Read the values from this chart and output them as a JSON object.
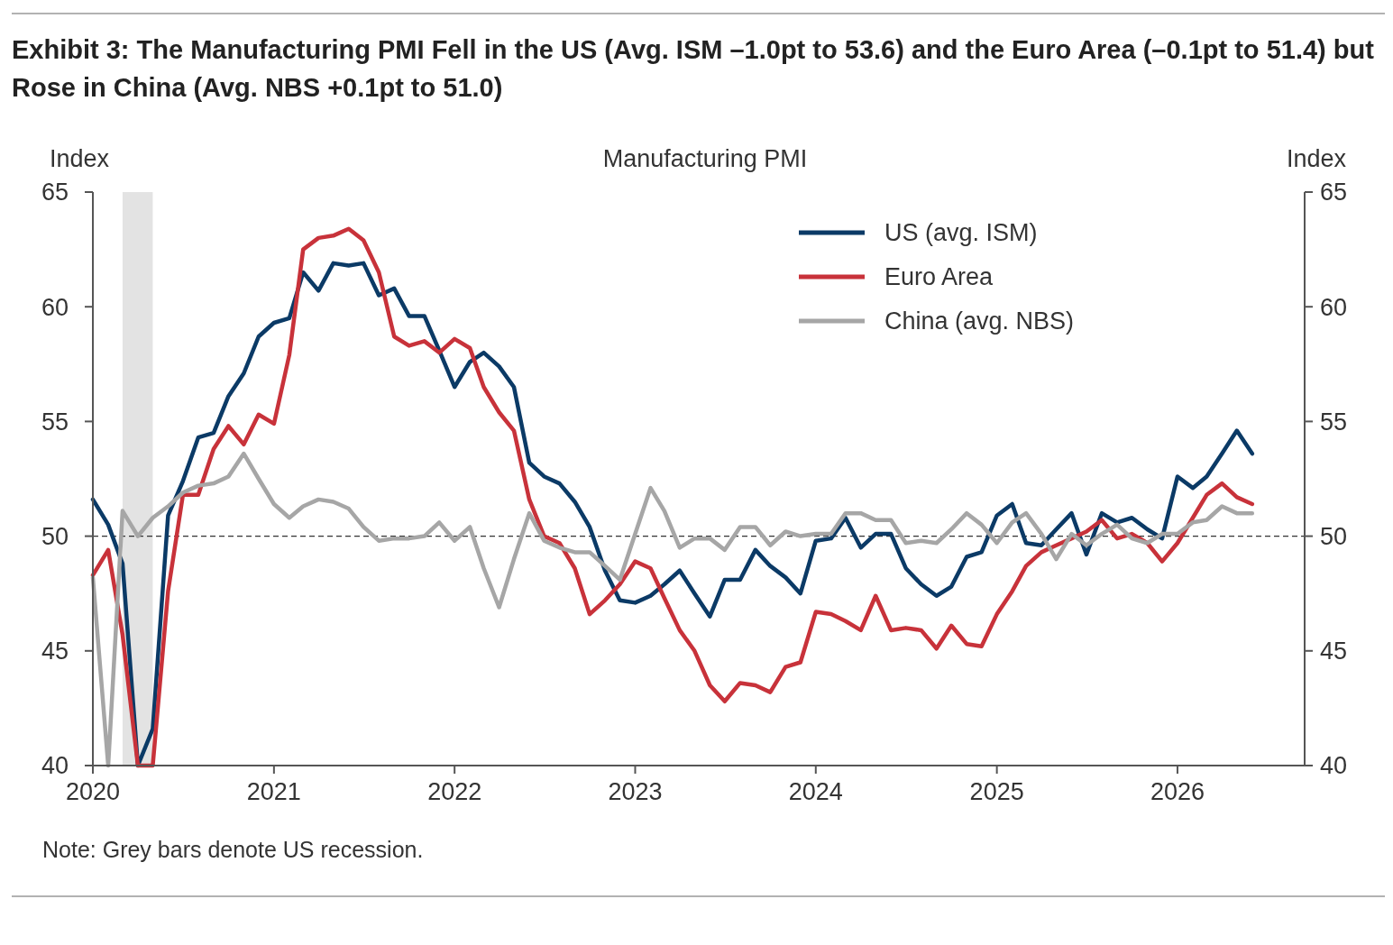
{
  "chart_data": {
    "type": "line",
    "title": "Exhibit 3: The Manufacturing PMI Fell in the US (Avg. ISM –1.0pt to 53.6) and the Euro Area (–0.1pt to 51.4) but Rose in China (Avg. NBS +0.1pt to 51.0)",
    "subtitle": "Manufacturing PMI",
    "ylabel": "Index",
    "y2label": "Index",
    "x": [
      "2020-01",
      "2020-02",
      "2020-03",
      "2020-04",
      "2020-05",
      "2020-06",
      "2020-07",
      "2020-08",
      "2020-09",
      "2020-10",
      "2020-11",
      "2020-12",
      "2021-01",
      "2021-02",
      "2021-03",
      "2021-04",
      "2021-05",
      "2021-06",
      "2021-07",
      "2021-08",
      "2021-09",
      "2021-10",
      "2021-11",
      "2021-12",
      "2022-01",
      "2022-02",
      "2022-03",
      "2022-04",
      "2022-05",
      "2022-06",
      "2022-07",
      "2022-08",
      "2022-09",
      "2022-10",
      "2022-11",
      "2022-12",
      "2023-01",
      "2023-02",
      "2023-03",
      "2023-04",
      "2023-05",
      "2023-06",
      "2023-07",
      "2023-08",
      "2023-09",
      "2023-10",
      "2023-11",
      "2023-12",
      "2024-01",
      "2024-02",
      "2024-03",
      "2024-04",
      "2024-05",
      "2024-06",
      "2024-07",
      "2024-08",
      "2024-09",
      "2024-10",
      "2024-11",
      "2024-12",
      "2025-01",
      "2025-02",
      "2025-03",
      "2025-04",
      "2025-05",
      "2025-06",
      "2025-07",
      "2025-08",
      "2025-09",
      "2025-10",
      "2025-11",
      "2025-12",
      "2026-01",
      "2026-02",
      "2026-03",
      "2026-04",
      "2026-05",
      "2026-06"
    ],
    "series": [
      {
        "name": "US (avg. ISM)",
        "color": "#0b3a66",
        "values": [
          51.6,
          50.5,
          48.8,
          40,
          41.6,
          50.9,
          52.4,
          54.3,
          54.5,
          56.1,
          57.1,
          58.7,
          59.3,
          59.5,
          61.5,
          60.7,
          61.9,
          61.8,
          61.9,
          60.5,
          60.8,
          59.6,
          59.6,
          58.1,
          56.5,
          57.6,
          58.0,
          57.4,
          56.5,
          53.2,
          52.6,
          52.3,
          51.5,
          50.4,
          48.5,
          47.2,
          47.1,
          47.4,
          47.9,
          48.5,
          47.5,
          46.5,
          48.1,
          48.1,
          49.4,
          48.7,
          48.2,
          47.5,
          49.8,
          49.9,
          50.8,
          49.5,
          50.1,
          50.1,
          48.6,
          47.9,
          47.4,
          47.8,
          49.1,
          49.3,
          50.9,
          51.4,
          49.7,
          49.6,
          50.3,
          51.0,
          49.2,
          51.0,
          50.6,
          50.8,
          50.3,
          49.9,
          52.6,
          52.1,
          52.6,
          53.6,
          54.6,
          53.6
        ]
      },
      {
        "name": "Euro Area",
        "color": "#c8323a",
        "values": [
          48.3,
          49.4,
          45.7,
          40,
          40,
          47.6,
          51.8,
          51.8,
          53.8,
          54.8,
          54.0,
          55.3,
          54.9,
          57.9,
          62.5,
          63.0,
          63.1,
          63.4,
          62.9,
          61.5,
          58.7,
          58.3,
          58.5,
          58.0,
          58.6,
          58.2,
          56.5,
          55.4,
          54.6,
          51.6,
          50.0,
          49.7,
          48.6,
          46.6,
          47.2,
          47.9,
          48.9,
          48.6,
          47.3,
          45.9,
          45.0,
          43.5,
          42.8,
          43.6,
          43.5,
          43.2,
          44.3,
          44.5,
          46.7,
          46.6,
          46.3,
          45.9,
          47.4,
          45.9,
          46.0,
          45.9,
          45.1,
          46.1,
          45.3,
          45.2,
          46.6,
          47.6,
          48.7,
          49.3,
          49.6,
          49.9,
          50.2,
          50.7,
          49.9,
          50.1,
          49.7,
          48.9,
          49.7,
          50.8,
          51.8,
          52.3,
          51.7,
          51.4
        ]
      },
      {
        "name": "China (avg. NBS)",
        "color": "#a6a6a6",
        "values": [
          48.2,
          40,
          51.1,
          50.0,
          50.8,
          51.3,
          51.9,
          52.2,
          52.3,
          52.6,
          53.6,
          52.5,
          51.4,
          50.8,
          51.3,
          51.6,
          51.5,
          51.2,
          50.4,
          49.8,
          49.9,
          49.9,
          50.0,
          50.6,
          49.8,
          50.4,
          48.6,
          46.9,
          49.0,
          51.0,
          49.8,
          49.5,
          49.3,
          49.3,
          48.7,
          48.1,
          50.1,
          52.1,
          51.1,
          49.5,
          49.9,
          49.9,
          49.4,
          50.4,
          50.4,
          49.6,
          50.2,
          50.0,
          50.1,
          50.1,
          51.0,
          51.0,
          50.7,
          50.7,
          49.7,
          49.8,
          49.7,
          50.3,
          51.0,
          50.5,
          49.7,
          50.6,
          51.0,
          50.1,
          49.0,
          50.1,
          49.6,
          50.1,
          50.5,
          49.9,
          49.7,
          50.1,
          50.1,
          50.6,
          50.7,
          51.3,
          51.0,
          51.0
        ]
      }
    ],
    "xlim": [
      "2020-01",
      "2026-09-15"
    ],
    "xticks": [
      "2020",
      "2021",
      "2022",
      "2023",
      "2024",
      "2025",
      "2026"
    ],
    "ylim": [
      40,
      65
    ],
    "yticks": [
      40,
      45,
      50,
      55,
      60,
      65
    ],
    "y2lim": [
      40,
      65
    ],
    "y2ticks": [
      40,
      45,
      50,
      55,
      60,
      65
    ],
    "ref_lines": [
      {
        "axis": "y",
        "value": 50,
        "color": "#333333",
        "line_style": "dashed"
      }
    ],
    "bands": [
      {
        "axis": "x",
        "from": "2020-03",
        "to": "2020-05",
        "color": "#e3e3e3"
      }
    ],
    "legend": "top right",
    "grid": false,
    "line_style": "solid",
    "marker": "none",
    "annotations": [
      "Note: Grey bars denote US recession."
    ]
  }
}
